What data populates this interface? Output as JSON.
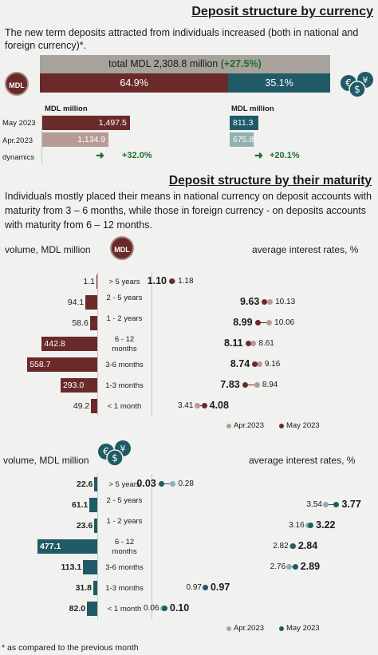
{
  "header": {
    "title": "Deposit structure by currency",
    "intro": "The new term deposits attracted from individuals increased (both in national and foreign currency)*."
  },
  "total": {
    "text": "total MDL 2,308.8 million",
    "change": "(+27.5%)"
  },
  "split": {
    "mdl_pct": "64.9%",
    "fx_pct": "35.1%",
    "mdl_share": 64.9
  },
  "badge": {
    "mdl": "MDL"
  },
  "currency_table": {
    "unit_mdl": "MDL million",
    "unit_fx": "MDL million",
    "rows": [
      "May 2023",
      "Apr.2023",
      "dynamics"
    ],
    "mdl": {
      "may": "1,497.5",
      "apr": "1,134.9",
      "dyn": "+32.0%",
      "may_v": 1497.5,
      "apr_v": 1134.9
    },
    "fx": {
      "may": "811.3",
      "apr": "675.8",
      "dyn": "+20.1%",
      "may_v": 811.3,
      "apr_v": 675.8
    },
    "arrow": "➜"
  },
  "maturity": {
    "title": "Deposit structure by their maturity",
    "intro": "Individuals mostly placed their means in national currency on deposit accounts with maturity from 3 – 6 months, while those in foreign currency - on deposits accounts with maturity from 6 – 12 months."
  },
  "chart_data": [
    {
      "type": "bar",
      "left_label": "volume, MDL million",
      "right_label": "average interest rates, %",
      "categories": [
        "> 5 years",
        "2 - 5 years",
        "1 - 2 years",
        "6 - 12 months",
        "3-6 months",
        "1-3 months",
        "< 1 month"
      ],
      "volume": [
        "1.1",
        "94.1",
        "58.6",
        "442.8",
        "558.7",
        "293.0",
        "49.2"
      ],
      "volume_values": [
        1.1,
        94.1,
        58.6,
        442.8,
        558.7,
        293.0,
        49.2
      ],
      "rate_may": [
        "1.10",
        "9.63",
        "8.99",
        "8.11",
        "8.74",
        "7.83",
        "4.08"
      ],
      "rate_apr": [
        "1.18",
        "10.13",
        "10.06",
        "8.61",
        "9.16",
        "8.94",
        "3.41"
      ],
      "legend": [
        "Apr.2023",
        "May 2023"
      ],
      "colors": {
        "bar_may": "#6b2a2a",
        "bar_apr": "#b89a94"
      }
    },
    {
      "type": "bar",
      "left_label": "volume, MDL million",
      "right_label": "average interest rates, %",
      "categories": [
        "> 5 years",
        "2 - 5 years",
        "1 - 2 years",
        "6 - 12 months",
        "3-6 months",
        "1-3 months",
        "< 1 month"
      ],
      "volume": [
        "22.6",
        "61.1",
        "23.6",
        "477.1",
        "113.1",
        "31.8",
        "82.0"
      ],
      "volume_values": [
        22.6,
        61.1,
        23.6,
        477.1,
        113.1,
        31.8,
        82.0
      ],
      "rate_may": [
        "0.03",
        "3.77",
        "3.22",
        "2.84",
        "2.89",
        "0.97",
        "0.10"
      ],
      "rate_apr": [
        "0.28",
        "3.54",
        "3.16",
        "2.82",
        "2.76",
        "0.97",
        "0.06"
      ],
      "legend": [
        "Apr.2023",
        "May 2023"
      ],
      "colors": {
        "bar_may": "#1f5a66",
        "bar_apr": "#8fb1b2"
      }
    }
  ],
  "footer": "* as compared to the previous month"
}
